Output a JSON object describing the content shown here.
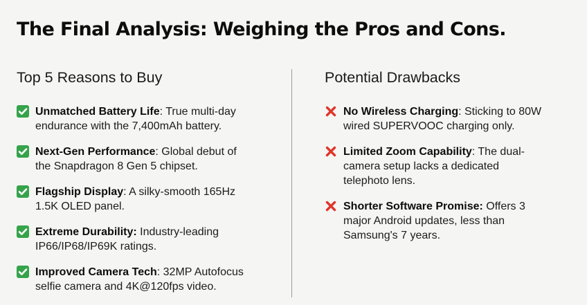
{
  "title": "The Final Analysis: Weighing the Pros and Cons.",
  "pros": {
    "heading": "Top 5 Reasons to Buy",
    "icon": "check-icon",
    "icon_color": "#35a34a",
    "items": [
      {
        "bold": "Unmatched Battery Life",
        "sep": ": ",
        "lines": [
          "True multi-day",
          "endurance with the 7,400mAh battery."
        ]
      },
      {
        "bold": "Next-Gen Performance",
        "sep": ": ",
        "lines": [
          "Global debut of",
          "the Snapdragon 8 Gen 5 chipset."
        ]
      },
      {
        "bold": "Flagship Display",
        "sep": ": ",
        "lines": [
          "A silky-smooth 165Hz",
          "1.5K OLED panel."
        ]
      },
      {
        "bold": "Extreme Durability:",
        "sep": " ",
        "lines": [
          "Industry-leading",
          "IP66/IP68/IP69K ratings."
        ]
      },
      {
        "bold": "Improved Camera Tech",
        "sep": ": ",
        "lines": [
          "32MP Autofocus",
          "selfie camera and 4K@120fps video."
        ]
      }
    ]
  },
  "cons": {
    "heading": "Potential Drawbacks",
    "icon": "cross-icon",
    "icon_color": "#e0352b",
    "items": [
      {
        "bold": "No Wireless Charging",
        "sep": ": ",
        "lines": [
          "Sticking to 80W",
          "wired SUPERVOOC charging only."
        ]
      },
      {
        "bold": "Limited Zoom Capability",
        "sep": ": ",
        "lines": [
          "The dual-",
          "camera setup lacks a dedicated",
          "telephoto lens."
        ]
      },
      {
        "bold": "Shorter Software Promise:",
        "sep": " ",
        "lines": [
          "Offers 3",
          "major Android updates, less than",
          "Samsung's 7 years."
        ]
      }
    ]
  }
}
